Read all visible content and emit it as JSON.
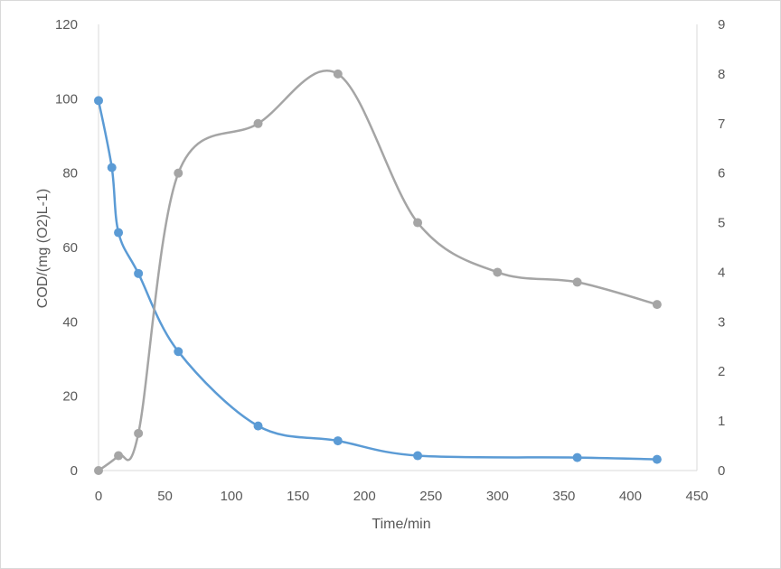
{
  "chart_data": {
    "type": "line",
    "title": "",
    "xlabel": "Time/min",
    "ylabel": "COD/(mg (O2)L-1)",
    "y2label": "",
    "xlim": [
      0,
      450
    ],
    "ylim": [
      0,
      120
    ],
    "y2lim": [
      0,
      9
    ],
    "x_ticks": [
      "0",
      "50",
      "100",
      "150",
      "200",
      "250",
      "300",
      "350",
      "400",
      "450"
    ],
    "y_ticks": [
      "0",
      "20",
      "40",
      "60",
      "80",
      "100",
      "120"
    ],
    "y2_ticks": [
      "0",
      "1",
      "2",
      "3",
      "4",
      "5",
      "6",
      "7",
      "8",
      "9"
    ],
    "grid": false,
    "legend": "none",
    "smooth": true,
    "series": [
      {
        "axis": "left",
        "color": "#5b9bd5",
        "x": [
          0,
          10,
          15,
          30,
          60,
          120,
          180,
          240,
          360,
          420
        ],
        "values": [
          99.5,
          81.5,
          64,
          53,
          32,
          12,
          8,
          4,
          3.5,
          3
        ]
      },
      {
        "axis": "right",
        "color": "#a5a5a5",
        "x": [
          0,
          15,
          30,
          60,
          120,
          180,
          240,
          300,
          360,
          420
        ],
        "values": [
          0,
          0.3,
          0.75,
          6,
          7,
          8,
          5,
          4,
          3.8,
          3.35
        ]
      }
    ]
  }
}
